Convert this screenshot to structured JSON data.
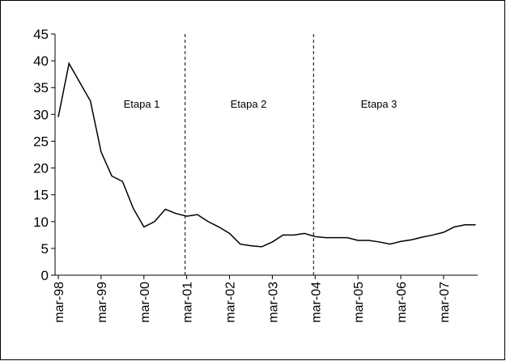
{
  "chart_data": {
    "type": "line",
    "categories": [
      "mar-98",
      null,
      null,
      null,
      "mar-99",
      null,
      null,
      null,
      "mar-00",
      null,
      null,
      null,
      "mar-01",
      null,
      null,
      null,
      "mar-02",
      null,
      null,
      null,
      "mar-03",
      null,
      null,
      null,
      "mar-04",
      null,
      null,
      null,
      "mar-05",
      null,
      null,
      null,
      "mar-06",
      null,
      null,
      null,
      "mar-07",
      null,
      null,
      null
    ],
    "values": [
      29.5,
      39.5,
      36,
      32.5,
      23,
      18.5,
      17.5,
      12.5,
      9,
      10,
      12.3,
      11.5,
      11,
      11.3,
      10,
      9,
      7.8,
      5.8,
      5.5,
      5.3,
      6.2,
      7.5,
      7.5,
      7.8,
      7.2,
      7,
      7,
      7,
      6.5,
      6.5,
      6.2,
      5.8,
      6.3,
      6.6,
      7.1,
      7.5,
      8,
      9,
      9.4,
      9.4
    ],
    "color": "#000000",
    "ylim": [
      0,
      45
    ],
    "yticks": [
      0,
      5,
      10,
      15,
      20,
      25,
      30,
      35,
      40,
      45
    ],
    "dividers": [
      "mar-01",
      "mar-04"
    ],
    "annotations": [
      "Etapa 1",
      "Etapa 2",
      "Etapa 3"
    ]
  }
}
